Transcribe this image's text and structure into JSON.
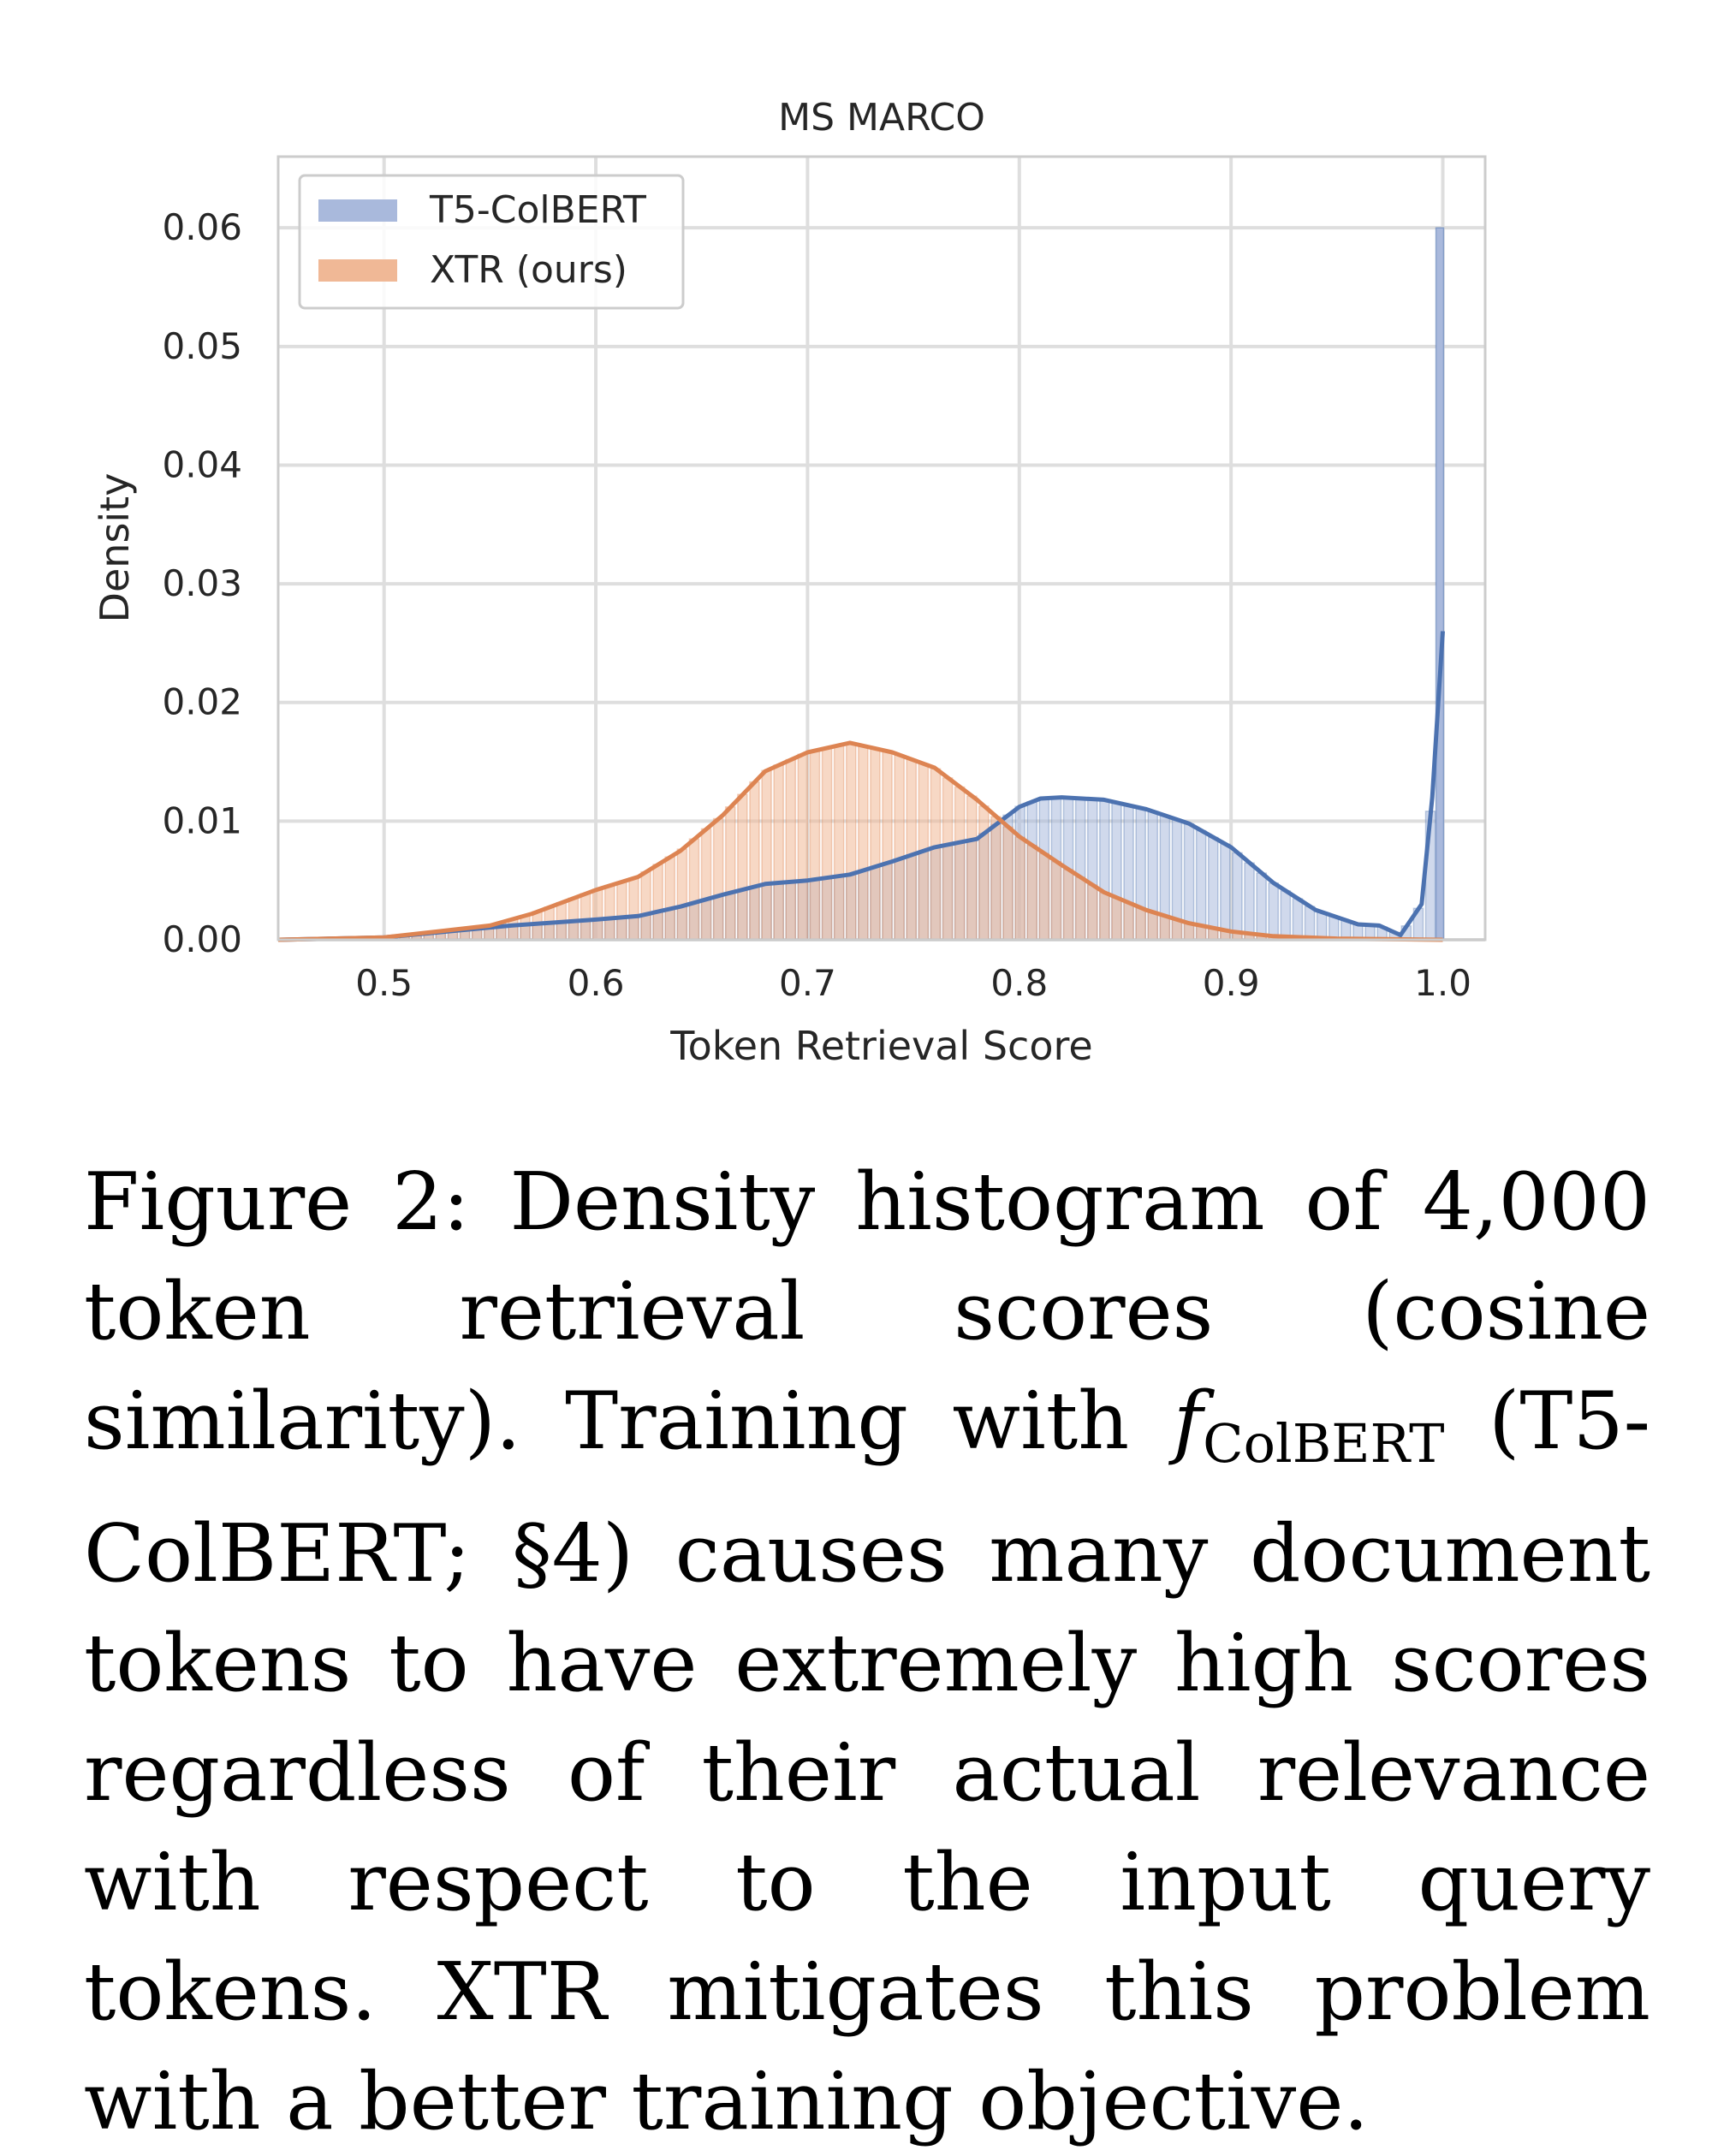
{
  "chart_data": {
    "type": "area",
    "title": "MS MARCO",
    "xlabel": "Token Retrieval Score",
    "ylabel": "Density",
    "xlim": [
      0.45,
      1.02
    ],
    "ylim": [
      0,
      0.066
    ],
    "xticks": [
      "0.5",
      "0.6",
      "0.7",
      "0.8",
      "0.9",
      "1.0"
    ],
    "xtick_values": [
      0.5,
      0.6,
      0.7,
      0.8,
      0.9,
      1.0
    ],
    "yticks": [
      "0.00",
      "0.01",
      "0.02",
      "0.03",
      "0.04",
      "0.05",
      "0.06"
    ],
    "ytick_values": [
      0,
      0.01,
      0.02,
      0.03,
      0.04,
      0.05,
      0.06
    ],
    "grid": true,
    "legend_position": "top-left",
    "series": [
      {
        "name": "T5-ColBERT",
        "color": "#4c72b0",
        "fill": "#a9b9dc",
        "x": [
          0.45,
          0.5,
          0.53,
          0.56,
          0.6,
          0.62,
          0.64,
          0.66,
          0.68,
          0.7,
          0.72,
          0.74,
          0.76,
          0.78,
          0.8,
          0.81,
          0.82,
          0.84,
          0.86,
          0.88,
          0.9,
          0.92,
          0.94,
          0.96,
          0.97,
          0.98,
          0.99,
          0.995,
          1.0
        ],
        "y": [
          0.0,
          0.0002,
          0.0007,
          0.0012,
          0.0017,
          0.002,
          0.0028,
          0.0038,
          0.0047,
          0.005,
          0.0055,
          0.0066,
          0.0078,
          0.0085,
          0.0112,
          0.0119,
          0.012,
          0.0118,
          0.011,
          0.0098,
          0.0078,
          0.0048,
          0.0025,
          0.0013,
          0.0012,
          0.0004,
          0.003,
          0.012,
          0.026
        ],
        "spike": {
          "x": 1.0,
          "y": 0.06
        }
      },
      {
        "name": "XTR (ours)",
        "color": "#dd8452",
        "fill": "#f0b896",
        "x": [
          0.45,
          0.5,
          0.55,
          0.57,
          0.6,
          0.62,
          0.64,
          0.66,
          0.68,
          0.7,
          0.72,
          0.74,
          0.76,
          0.78,
          0.8,
          0.82,
          0.84,
          0.86,
          0.88,
          0.9,
          0.92,
          0.95,
          1.0
        ],
        "y": [
          0.0,
          0.0002,
          0.0012,
          0.0022,
          0.0042,
          0.0053,
          0.0075,
          0.0105,
          0.0142,
          0.0158,
          0.0166,
          0.0158,
          0.0145,
          0.0118,
          0.0087,
          0.0063,
          0.004,
          0.0025,
          0.0014,
          0.0007,
          0.0003,
          0.0001,
          0.0
        ]
      }
    ]
  },
  "caption": {
    "prefix": "Figure 2:  Density histogram of 4,000 token retrieval scores (cosine similarity). Training with",
    "fn_base": "f",
    "fn_sub": "ColBERT",
    "suffix": "(T5-ColBERT; §4) causes many document tokens to have extremely high scores regardless of their actual relevance with respect to the input query tokens. XTR mitigates this problem with a better training objective."
  }
}
